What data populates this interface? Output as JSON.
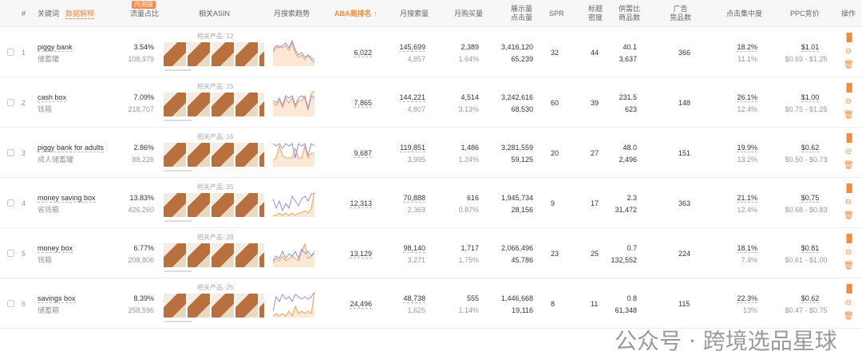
{
  "header": {
    "index": "#",
    "keyword": "关键词",
    "keyword_link": "数据解释",
    "badge": "内测版",
    "traffic": "流量占比",
    "asin": "相关ASIN",
    "trend": "月搜索趋势",
    "aba": "ABA周排名 ↑",
    "monthly_search": "月搜索量",
    "monthly_buy": "月购买量",
    "impr1": "展示量",
    "impr2": "点击量",
    "spr": "SPR",
    "title1": "标题",
    "title2": "密度",
    "supply1": "供需比",
    "supply2": "商品数",
    "ad1": "广告",
    "ad2": "竞品数",
    "click_conc": "点击集中度",
    "ppc": "PPC竞价",
    "ops": "操作"
  },
  "colors": {
    "accent": "#f08a3c",
    "trend_blue": "#8f8ff5",
    "trend_orange": "#f5a25d"
  },
  "rows": [
    {
      "idx": "1",
      "kw": "piggy bank",
      "cn": "储蓄罐",
      "share": "3.54%",
      "share_n": "108,979",
      "related": "相关产品: 12",
      "aba": "6,022",
      "ms": "145,699",
      "ms2": "4,857",
      "mb": "2,389",
      "mb2": "1.64%",
      "imp": "3,416,120",
      "clk": "65,239",
      "spr": "32",
      "td": "44",
      "sd": "40.1",
      "sd2": "3,637",
      "ad": "366",
      "cc": "18.2%",
      "cc2": "11.1%",
      "ppc": "$1.01",
      "ppc2": "$0.69 - $1.25",
      "t1": [
        6,
        8,
        7,
        8,
        9,
        7,
        10,
        6,
        4,
        5,
        3,
        4,
        2,
        1
      ],
      "t2": [
        5,
        7,
        8,
        7,
        8,
        6,
        9,
        5,
        3,
        4,
        2,
        4,
        3,
        2
      ]
    },
    {
      "idx": "2",
      "kw": "cash box",
      "cn": "钱箱",
      "share": "7.09%",
      "share_n": "218,707",
      "related": "相关产品: 15",
      "aba": "7,865",
      "ms": "144,221",
      "ms2": "4,807",
      "mb": "4,514",
      "mb2": "3.13%",
      "imp": "3,242,616",
      "clk": "68,530",
      "spr": "60",
      "td": "39",
      "sd": "231.5",
      "sd2": "623",
      "ad": "148",
      "cc": "26.1%",
      "cc2": "12.4%",
      "ppc": "$1.00",
      "ppc2": "$0.75 - $1.25",
      "t1": [
        6,
        5,
        7,
        4,
        8,
        7,
        8,
        4,
        7,
        8,
        7,
        2,
        8,
        7
      ],
      "t2": [
        5,
        4,
        6,
        3,
        7,
        5,
        7,
        3,
        6,
        6,
        8,
        3,
        9,
        10
      ]
    },
    {
      "idx": "3",
      "kw": "piggy bank for adults",
      "cn": "成人储蓄罐",
      "share": "2.86%",
      "share_n": "88,226",
      "related": "相关产品: 16",
      "aba": "9,687",
      "ms": "119,851",
      "ms2": "3,995",
      "mb": "1,486",
      "mb2": "1.24%",
      "imp": "3,281,559",
      "clk": "59,125",
      "spr": "20",
      "td": "27",
      "sd": "48.0",
      "sd2": "2,496",
      "ad": "151",
      "cc": "19.9%",
      "cc2": "13.2%",
      "ppc": "$0.62",
      "ppc2": "$0.50 - $0.73",
      "t1": [
        9,
        8,
        9,
        7,
        9,
        8,
        9,
        3,
        9,
        8,
        9,
        4,
        9,
        8
      ],
      "t2": [
        2,
        3,
        8,
        4,
        3,
        3,
        3,
        7,
        3,
        3,
        8,
        3,
        5,
        5
      ]
    },
    {
      "idx": "4",
      "kw": "money saving box",
      "cn": "省钱箱",
      "share": "13.83%",
      "share_n": "426,260",
      "related": "相关产品: 25",
      "aba": "12,313",
      "ms": "70,888",
      "ms2": "2,363",
      "mb": "616",
      "mb2": "0.87%",
      "imp": "1,945,734",
      "clk": "28,156",
      "spr": "9",
      "td": "17",
      "sd": "2.3",
      "sd2": "31,472",
      "ad": "363",
      "cc": "21.1%",
      "cc2": "12.4%",
      "ppc": "$0.75",
      "ppc2": "$0.68 - $0.83",
      "t1": [
        7,
        3,
        6,
        2,
        5,
        3,
        8,
        6,
        4,
        7,
        8,
        6,
        9,
        9
      ],
      "t2": [
        0,
        0,
        1,
        0,
        1,
        0,
        1,
        0,
        1,
        1,
        2,
        1,
        3,
        10
      ]
    },
    {
      "idx": "5",
      "kw": "money box",
      "cn": "钱箱",
      "share": "6.77%",
      "share_n": "208,806",
      "related": "相关产品: 28",
      "aba": "13,129",
      "ms": "98,140",
      "ms2": "3,271",
      "mb": "1,717",
      "mb2": "1.75%",
      "imp": "2,066,496",
      "clk": "45,786",
      "spr": "23",
      "td": "25",
      "sd": "0.7",
      "sd2": "132,552",
      "ad": "224",
      "cc": "18.1%",
      "cc2": "7.4%",
      "ppc": "$0.81",
      "ppc2": "$0.61 - $1.00",
      "t1": [
        2,
        4,
        3,
        6,
        3,
        5,
        4,
        6,
        3,
        7,
        5,
        6,
        4,
        6
      ],
      "t2": [
        1,
        3,
        2,
        4,
        2,
        3,
        4,
        3,
        2,
        6,
        9,
        3,
        4,
        5
      ]
    },
    {
      "idx": "6",
      "kw": "savings box",
      "cn": "储蓄箱",
      "share": "8.39%",
      "share_n": "258,596",
      "related": "相关产品: 25",
      "aba": "24,496",
      "ms": "48,738",
      "ms2": "1,625",
      "mb": "555",
      "mb2": "1.14%",
      "imp": "1,446,668",
      "clk": "19,116",
      "spr": "8",
      "td": "11",
      "sd": "0.8",
      "sd2": "61,348",
      "ad": "115",
      "cc": "22.3%",
      "cc2": "13%",
      "ppc": "$0.62",
      "ppc2": "$0.47 - $0.75",
      "t1": [
        2,
        8,
        6,
        9,
        7,
        8,
        6,
        9,
        8,
        7,
        8,
        7,
        8,
        10
      ],
      "t2": [
        0,
        1,
        0,
        1,
        0,
        2,
        0,
        4,
        1,
        2,
        1,
        2,
        1,
        10
      ]
    }
  ],
  "watermark": "公众号 · 跨境选品星球"
}
